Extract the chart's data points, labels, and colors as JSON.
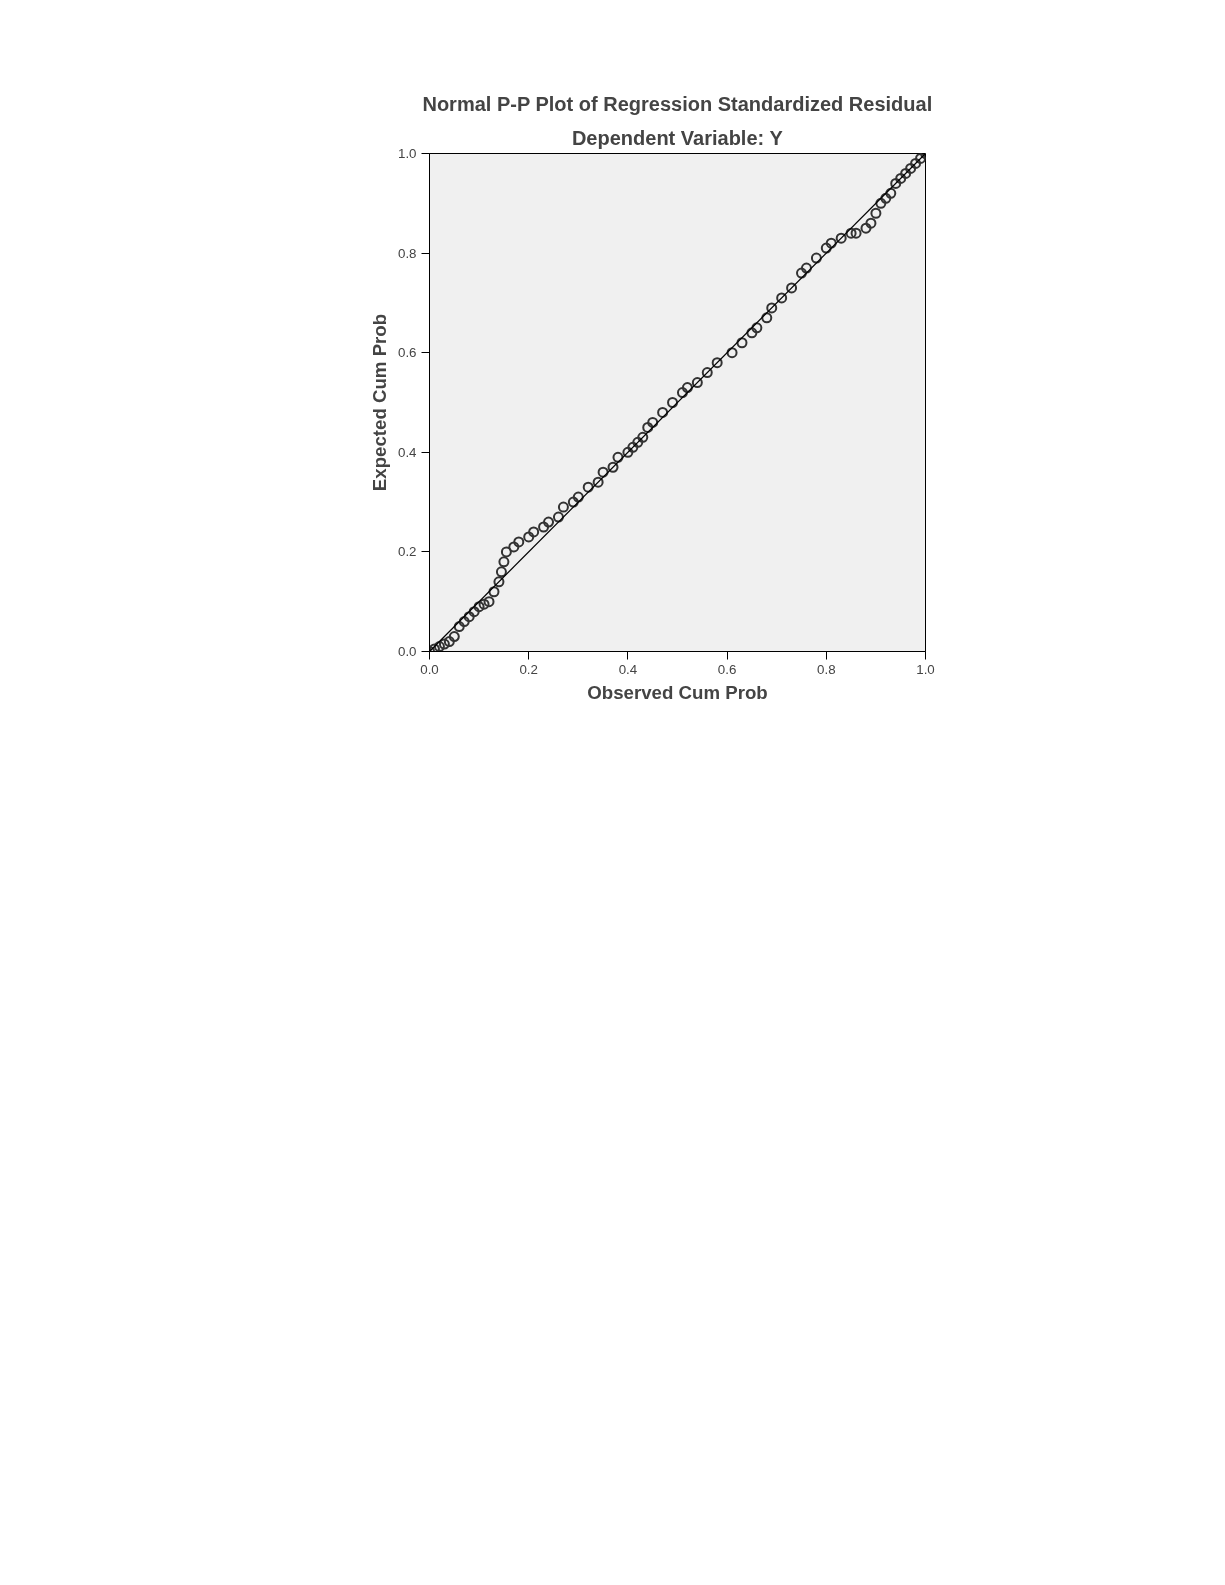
{
  "chart_data": {
    "type": "scatter",
    "title": "Normal P-P Plot of Regression Standardized Residual",
    "subtitle": "Dependent Variable: Y",
    "xlabel": "Observed Cum Prob",
    "ylabel": "Expected Cum Prob",
    "xlim": [
      0,
      1
    ],
    "ylim": [
      0,
      1
    ],
    "xticks": [
      {
        "value": 0,
        "label": "0.0"
      },
      {
        "value": 0.2,
        "label": "0.2"
      },
      {
        "value": 0.4,
        "label": "0.4"
      },
      {
        "value": 0.6,
        "label": "0.6"
      },
      {
        "value": 0.8,
        "label": "0.8"
      },
      {
        "value": 1,
        "label": "1.0"
      }
    ],
    "yticks": [
      {
        "value": 0,
        "label": "0.0"
      },
      {
        "value": 0.2,
        "label": "0.2"
      },
      {
        "value": 0.4,
        "label": "0.4"
      },
      {
        "value": 0.6,
        "label": "0.6"
      },
      {
        "value": 0.8,
        "label": "0.8"
      },
      {
        "value": 1,
        "label": "1.0"
      }
    ],
    "grid": false,
    "marker": "circle",
    "series": [
      {
        "color": "#333333",
        "x": [
          0.0,
          0.01,
          0.02,
          0.03,
          0.04,
          0.05,
          0.06,
          0.07,
          0.08,
          0.09,
          0.1,
          0.11,
          0.12,
          0.13,
          0.14,
          0.145,
          0.15,
          0.155,
          0.17,
          0.18,
          0.2,
          0.21,
          0.23,
          0.24,
          0.26,
          0.27,
          0.29,
          0.3,
          0.32,
          0.34,
          0.35,
          0.37,
          0.38,
          0.4,
          0.41,
          0.42,
          0.43,
          0.44,
          0.45,
          0.47,
          0.49,
          0.51,
          0.52,
          0.54,
          0.56,
          0.58,
          0.61,
          0.63,
          0.65,
          0.66,
          0.68,
          0.69,
          0.71,
          0.73,
          0.75,
          0.76,
          0.78,
          0.8,
          0.81,
          0.83,
          0.85,
          0.86,
          0.88,
          0.89,
          0.9,
          0.91,
          0.92,
          0.93,
          0.94,
          0.95,
          0.96,
          0.97,
          0.98,
          0.99,
          1.0
        ],
        "values": [
          0.0,
          0.005,
          0.01,
          0.015,
          0.02,
          0.03,
          0.05,
          0.06,
          0.07,
          0.08,
          0.09,
          0.095,
          0.1,
          0.12,
          0.14,
          0.16,
          0.18,
          0.2,
          0.21,
          0.22,
          0.23,
          0.24,
          0.25,
          0.26,
          0.27,
          0.29,
          0.3,
          0.31,
          0.33,
          0.34,
          0.36,
          0.37,
          0.39,
          0.4,
          0.41,
          0.42,
          0.43,
          0.45,
          0.46,
          0.48,
          0.5,
          0.52,
          0.53,
          0.54,
          0.56,
          0.58,
          0.6,
          0.62,
          0.64,
          0.65,
          0.67,
          0.69,
          0.71,
          0.73,
          0.76,
          0.77,
          0.79,
          0.81,
          0.82,
          0.83,
          0.84,
          0.84,
          0.85,
          0.86,
          0.88,
          0.9,
          0.91,
          0.92,
          0.94,
          0.95,
          0.96,
          0.97,
          0.98,
          0.99,
          1.0
        ]
      },
      {
        "type": "line",
        "marker": "none",
        "color": "#000000",
        "x": [
          0,
          1
        ],
        "values": [
          0,
          1
        ]
      }
    ]
  }
}
